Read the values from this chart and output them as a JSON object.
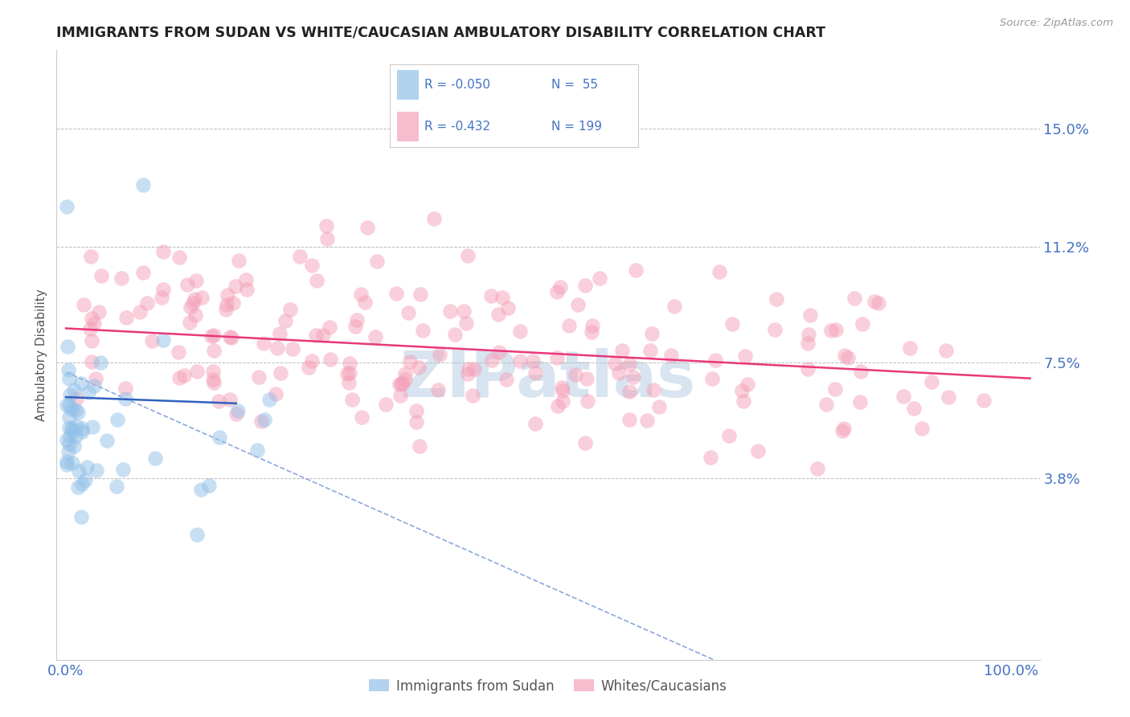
{
  "title": "IMMIGRANTS FROM SUDAN VS WHITE/CAUCASIAN AMBULATORY DISABILITY CORRELATION CHART",
  "source": "Source: ZipAtlas.com",
  "ylabel": "Ambulatory Disability",
  "xlim": [
    0.0,
    1.0
  ],
  "ylim": [
    -0.02,
    0.175
  ],
  "yticks": [
    0.038,
    0.075,
    0.112,
    0.15
  ],
  "ytick_labels": [
    "3.8%",
    "7.5%",
    "11.2%",
    "15.0%"
  ],
  "xtick_labels": [
    "0.0%",
    "100.0%"
  ],
  "xticks": [
    0.0,
    1.0
  ],
  "r_blue": -0.05,
  "n_blue": 55,
  "r_pink": -0.432,
  "n_pink": 199,
  "blue_color": "#92C0E8",
  "pink_color": "#F4A0B8",
  "blue_line_color": "#3060C0",
  "pink_line_color": "#E8387A",
  "legend_text_color": "#4472C4",
  "watermark_color": "#D8E4F0",
  "background_color": "#FFFFFF",
  "seed_blue": 42,
  "seed_pink": 7
}
